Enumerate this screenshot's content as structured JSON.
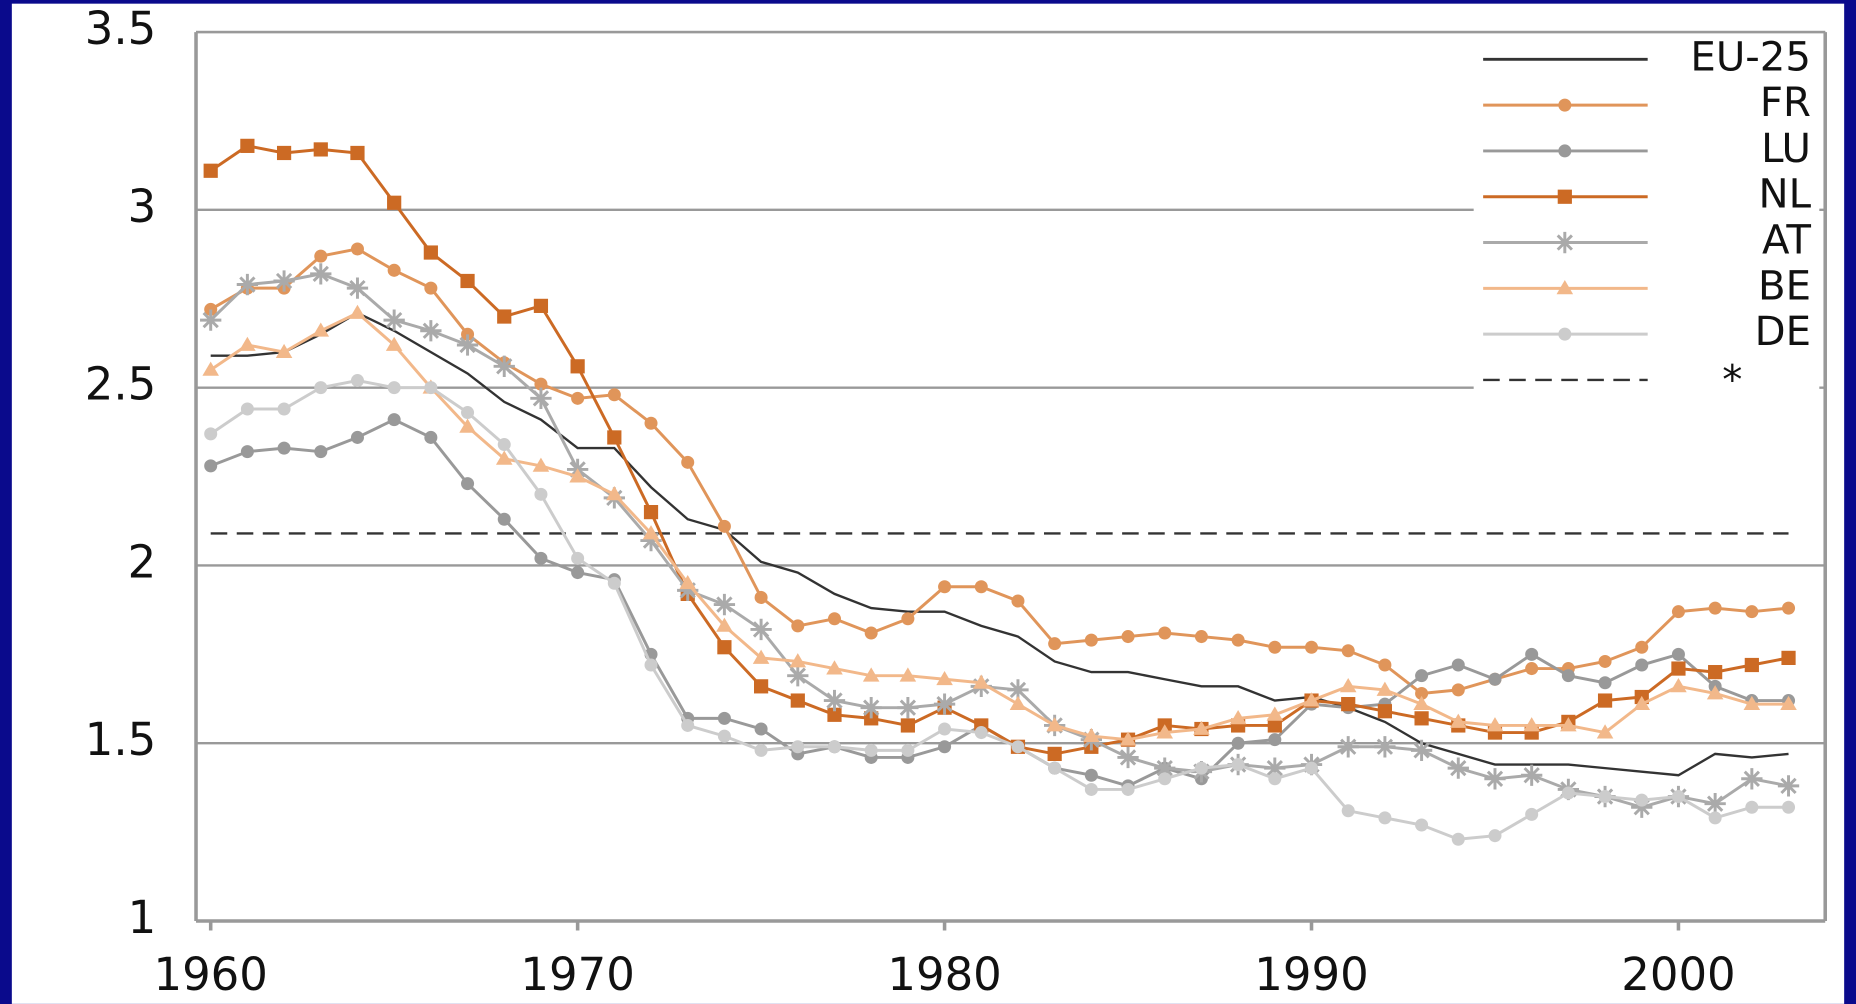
{
  "chart_data": {
    "type": "line",
    "x": [
      1960,
      1961,
      1962,
      1963,
      1964,
      1965,
      1966,
      1967,
      1968,
      1969,
      1970,
      1971,
      1972,
      1973,
      1974,
      1975,
      1976,
      1977,
      1978,
      1979,
      1980,
      1981,
      1982,
      1983,
      1984,
      1985,
      1986,
      1987,
      1988,
      1989,
      1990,
      1991,
      1992,
      1993,
      1994,
      1995,
      1996,
      1997,
      1998,
      1999,
      2000,
      2001,
      2002,
      2003
    ],
    "series": [
      {
        "name": "EU-25",
        "color": "#333333",
        "marker": "none",
        "values": [
          2.59,
          2.59,
          2.6,
          2.65,
          2.71,
          2.66,
          2.6,
          2.54,
          2.46,
          2.41,
          2.33,
          2.33,
          2.22,
          2.13,
          2.1,
          2.01,
          1.98,
          1.92,
          1.88,
          1.87,
          1.87,
          1.83,
          1.8,
          1.73,
          1.7,
          1.7,
          1.68,
          1.66,
          1.66,
          1.62,
          1.63,
          1.6,
          1.56,
          1.5,
          1.47,
          1.44,
          1.44,
          1.44,
          1.43,
          1.42,
          1.41,
          1.47,
          1.46,
          1.47
        ]
      },
      {
        "name": "FR",
        "color": "#e0955a",
        "marker": "circle",
        "values": [
          2.72,
          2.78,
          2.78,
          2.87,
          2.89,
          2.83,
          2.78,
          2.65,
          2.57,
          2.51,
          2.47,
          2.48,
          2.4,
          2.29,
          2.11,
          1.91,
          1.83,
          1.85,
          1.81,
          1.85,
          1.94,
          1.94,
          1.9,
          1.78,
          1.79,
          1.8,
          1.81,
          1.8,
          1.79,
          1.77,
          1.77,
          1.76,
          1.72,
          1.64,
          1.65,
          1.68,
          1.71,
          1.71,
          1.73,
          1.77,
          1.87,
          1.88,
          1.87,
          1.88
        ]
      },
      {
        "name": "LU",
        "color": "#999999",
        "marker": "circle",
        "values": [
          2.28,
          2.32,
          2.33,
          2.32,
          2.36,
          2.41,
          2.36,
          2.23,
          2.13,
          2.02,
          1.98,
          1.96,
          1.75,
          1.57,
          1.57,
          1.54,
          1.47,
          1.49,
          1.46,
          1.46,
          1.49,
          1.55,
          1.49,
          1.43,
          1.41,
          1.38,
          1.43,
          1.4,
          1.5,
          1.51,
          1.61,
          1.6,
          1.61,
          1.69,
          1.72,
          1.68,
          1.75,
          1.69,
          1.67,
          1.72,
          1.75,
          1.66,
          1.62,
          1.62
        ]
      },
      {
        "name": "NL",
        "color": "#cc6a24",
        "marker": "square",
        "values": [
          3.11,
          3.18,
          3.16,
          3.17,
          3.16,
          3.02,
          2.88,
          2.8,
          2.7,
          2.73,
          2.56,
          2.36,
          2.15,
          1.92,
          1.77,
          1.66,
          1.62,
          1.58,
          1.57,
          1.55,
          1.6,
          1.55,
          1.49,
          1.47,
          1.49,
          1.51,
          1.55,
          1.54,
          1.55,
          1.55,
          1.62,
          1.61,
          1.59,
          1.57,
          1.55,
          1.53,
          1.53,
          1.56,
          1.62,
          1.63,
          1.71,
          1.7,
          1.72,
          1.74
        ]
      },
      {
        "name": "AT",
        "color": "#aaaaaa",
        "marker": "star",
        "values": [
          2.69,
          2.79,
          2.8,
          2.82,
          2.78,
          2.69,
          2.66,
          2.62,
          2.56,
          2.47,
          2.27,
          2.19,
          2.07,
          1.93,
          1.89,
          1.82,
          1.69,
          1.62,
          1.6,
          1.6,
          1.61,
          1.66,
          1.65,
          1.55,
          1.51,
          1.46,
          1.43,
          1.42,
          1.44,
          1.43,
          1.44,
          1.49,
          1.49,
          1.48,
          1.43,
          1.4,
          1.41,
          1.37,
          1.35,
          1.32,
          1.35,
          1.33,
          1.4,
          1.38
        ]
      },
      {
        "name": "BE",
        "color": "#f2b88a",
        "marker": "triangle",
        "values": [
          2.55,
          2.62,
          2.6,
          2.66,
          2.71,
          2.62,
          2.5,
          2.39,
          2.3,
          2.28,
          2.25,
          2.2,
          2.09,
          1.95,
          1.83,
          1.74,
          1.73,
          1.71,
          1.69,
          1.69,
          1.68,
          1.67,
          1.61,
          1.55,
          1.52,
          1.51,
          1.53,
          1.54,
          1.57,
          1.58,
          1.62,
          1.66,
          1.65,
          1.61,
          1.56,
          1.55,
          1.55,
          1.55,
          1.53,
          1.61,
          1.66,
          1.64,
          1.61,
          1.61
        ]
      },
      {
        "name": "DE",
        "color": "#cccccc",
        "marker": "circle",
        "values": [
          2.37,
          2.44,
          2.44,
          2.5,
          2.52,
          2.5,
          2.5,
          2.43,
          2.34,
          2.2,
          2.02,
          1.95,
          1.72,
          1.55,
          1.52,
          1.48,
          1.49,
          1.49,
          1.48,
          1.48,
          1.54,
          1.53,
          1.49,
          1.43,
          1.37,
          1.37,
          1.4,
          1.43,
          1.44,
          1.4,
          1.43,
          1.31,
          1.29,
          1.27,
          1.23,
          1.24,
          1.3,
          1.36,
          1.35,
          1.34,
          1.35,
          1.29,
          1.32,
          1.32
        ]
      }
    ],
    "reference_line": {
      "name": "*",
      "value": 2.09,
      "color": "#333333",
      "dashed": true
    },
    "xlim": [
      1959.6,
      2004
    ],
    "xticks": [
      1960,
      1970,
      1980,
      1990,
      2000
    ],
    "ylim": [
      1,
      3.5
    ],
    "yticks": [
      1,
      1.5,
      2,
      2.5,
      3,
      3.5
    ],
    "grid": true,
    "legend": "upper right"
  }
}
